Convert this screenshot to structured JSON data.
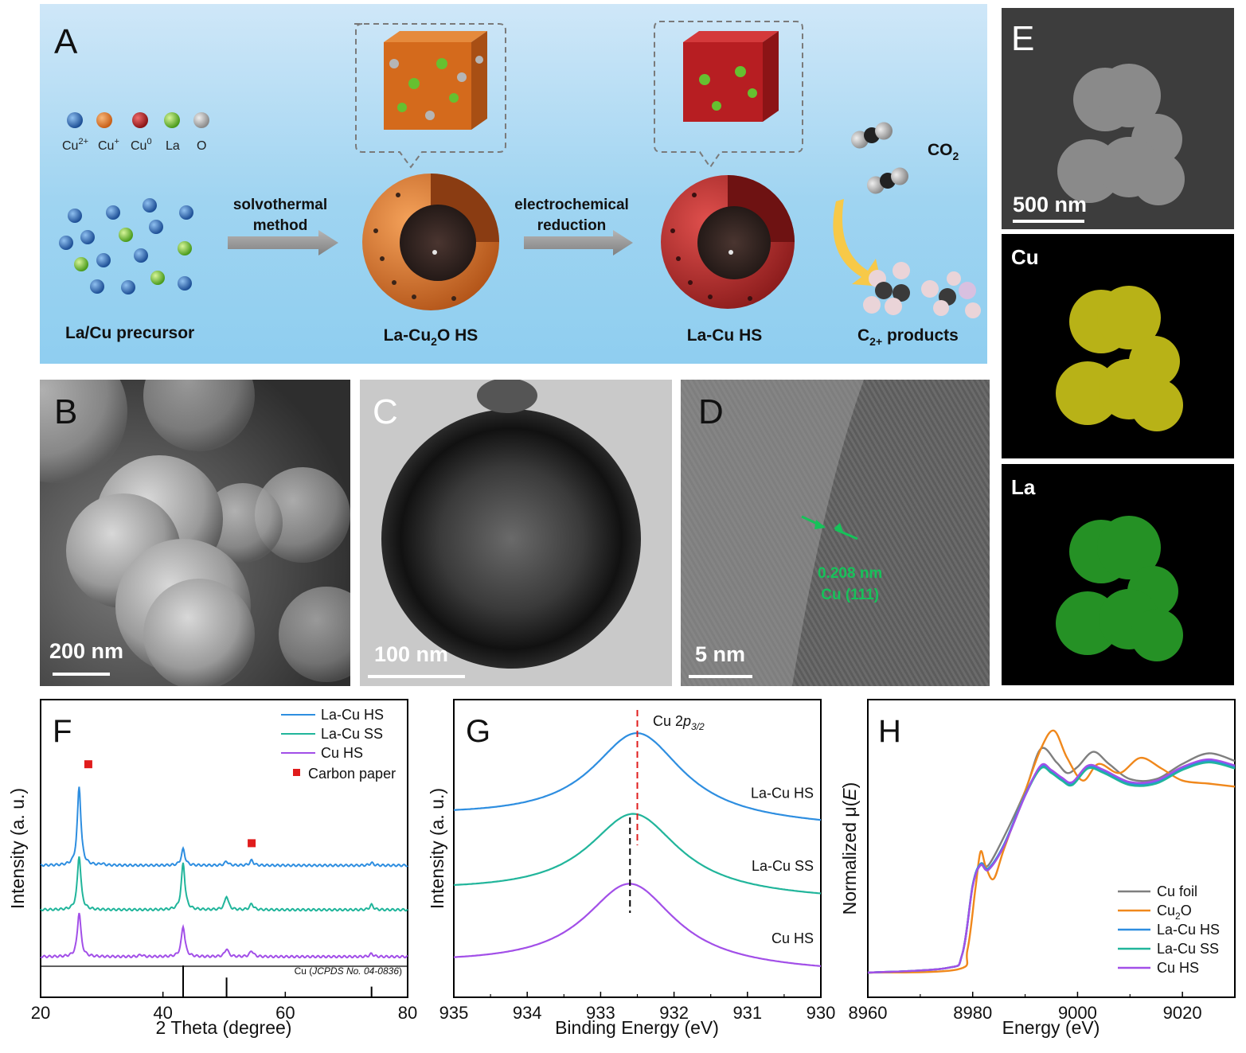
{
  "schematic": {
    "label": "A",
    "legend": [
      {
        "ion": "Cu",
        "charge": "2+",
        "color": "#2f6fb8"
      },
      {
        "ion": "Cu",
        "charge": "+",
        "color": "#e07a2a"
      },
      {
        "ion": "Cu",
        "charge": "0",
        "color": "#b8262a"
      },
      {
        "ion": "La",
        "charge": "",
        "color": "#6cc230"
      },
      {
        "ion": "O",
        "charge": "",
        "color": "#a8a8a8"
      }
    ],
    "arrow1_line1": "solvothermal",
    "arrow1_line2": "method",
    "arrow2_line1": "electrochemical",
    "arrow2_line2": "reduction",
    "precursor_label": "La/Cu precursor",
    "cu2o_label_a": "La-Cu",
    "cu2o_label_sub": "2",
    "cu2o_label_b": "O HS",
    "cuhs_label": "La-Cu HS",
    "co2_label": "CO",
    "co2_sub": "2",
    "products_label_a": "C",
    "products_label_sub": "2+",
    "products_label_b": " products"
  },
  "micrographs": {
    "B": {
      "label": "B",
      "scalebar": "200 nm"
    },
    "C": {
      "label": "C",
      "scalebar": "100 nm"
    },
    "D": {
      "label": "D",
      "scalebar": "5 nm",
      "fringe_spacing": "0.208 nm",
      "fringe_plane": "Cu (111)"
    },
    "E": {
      "label": "E",
      "scalebar": "500 nm"
    },
    "map_cu": {
      "label": "Cu",
      "color": "#d9d21c"
    },
    "map_la": {
      "label": "La",
      "color": "#2fb62f"
    }
  },
  "chart_data": [
    {
      "panel": "F",
      "type": "line",
      "xlabel": "2 Theta (degree)",
      "ylabel": "Intensity (a. u.)",
      "xlim": [
        20,
        80
      ],
      "xticks": [
        20,
        40,
        60,
        80
      ],
      "series": [
        {
          "name": "La-Cu HS",
          "color": "#2e8ee0",
          "offset": 1.85,
          "peaks": [
            [
              26.3,
              1.6
            ],
            [
              30.0,
              0.03
            ],
            [
              43.3,
              0.33
            ],
            [
              50.4,
              0.08
            ],
            [
              54.5,
              0.1
            ],
            [
              74.1,
              0.05
            ]
          ]
        },
        {
          "name": "La-Cu SS",
          "color": "#21b59b",
          "offset": 0.95,
          "peaks": [
            [
              26.3,
              1.1
            ],
            [
              43.3,
              0.95
            ],
            [
              50.4,
              0.28
            ],
            [
              54.5,
              0.12
            ],
            [
              74.1,
              0.1
            ]
          ]
        },
        {
          "name": "Cu HS",
          "color": "#a24fe8",
          "offset": 0.0,
          "peaks": [
            [
              26.3,
              0.9
            ],
            [
              36.4,
              0.04
            ],
            [
              43.3,
              0.62
            ],
            [
              50.4,
              0.16
            ],
            [
              54.5,
              0.12
            ],
            [
              74.1,
              0.06
            ]
          ]
        }
      ],
      "markers": {
        "name": "Carbon paper",
        "color": "#e01c1c",
        "positions": [
          [
            27.8,
            3.9
          ],
          [
            54.5,
            2.3
          ]
        ]
      },
      "reference": {
        "label": "Cu (",
        "label_italic": "JCPDS No. 04-0836",
        "label_end": ")",
        "lines": [
          [
            43.3,
            1.0
          ],
          [
            50.4,
            0.6
          ],
          [
            74.1,
            0.3
          ]
        ]
      },
      "legend": "top-right"
    },
    {
      "panel": "G",
      "type": "line",
      "xlabel": "Binding Energy (eV)",
      "ylabel": "Intensity (a. u.)",
      "xlim": [
        935,
        930
      ],
      "xticks": [
        935,
        934,
        933,
        932,
        931,
        930
      ],
      "annotation": {
        "text_a": "Cu 2",
        "text_italic": "p",
        "text_sub": "3/2"
      },
      "series": [
        {
          "name": "La-Cu HS",
          "color": "#2e8ee0",
          "center": 932.5,
          "amp": 1.0,
          "base": 2.2,
          "slope": 0.15
        },
        {
          "name": "La-Cu SS",
          "color": "#21b59b",
          "center": 932.55,
          "amp": 0.92,
          "base": 1.1,
          "slope": 0.12
        },
        {
          "name": "Cu HS",
          "color": "#a24fe8",
          "center": 932.6,
          "amp": 0.95,
          "base": 0.0,
          "slope": 0.12
        }
      ],
      "guides": [
        {
          "x": 932.5,
          "color": "#e01c1c"
        },
        {
          "x": 932.6,
          "color": "#000000"
        }
      ]
    },
    {
      "panel": "H",
      "type": "line",
      "xlabel": "Energy (eV)",
      "ylabel_a": "Normalized μ(",
      "ylabel_italic": "E",
      "ylabel_b": ")",
      "xlim": [
        8960,
        9030
      ],
      "xticks": [
        8960,
        8980,
        9000,
        9020
      ],
      "series": [
        {
          "name": "Cu foil",
          "color": "#7f7f7f",
          "points": [
            [
              8960,
              0
            ],
            [
              8975,
              0.03
            ],
            [
              8978,
              0.12
            ],
            [
              8980,
              0.58
            ],
            [
              8981.5,
              0.72
            ],
            [
              8983,
              0.71
            ],
            [
              8986,
              0.9
            ],
            [
              8990,
              1.2
            ],
            [
              8993,
              1.48
            ],
            [
              8996,
              1.39
            ],
            [
              8998,
              1.32
            ],
            [
              9000,
              1.36
            ],
            [
              9003,
              1.46
            ],
            [
              9006,
              1.38
            ],
            [
              9010,
              1.28
            ],
            [
              9015,
              1.28
            ],
            [
              9020,
              1.38
            ],
            [
              9025,
              1.45
            ],
            [
              9030,
              1.4
            ]
          ]
        },
        {
          "name": "Cu",
          "sub": "2",
          "tail": "O",
          "color": "#f0881c",
          "points": [
            [
              8960,
              0
            ],
            [
              8977,
              0.02
            ],
            [
              8979,
              0.15
            ],
            [
              8980.5,
              0.55
            ],
            [
              8981.5,
              0.8
            ],
            [
              8982.5,
              0.7
            ],
            [
              8984,
              0.62
            ],
            [
              8986,
              0.82
            ],
            [
              8990,
              1.2
            ],
            [
              8993,
              1.48
            ],
            [
              8995.5,
              1.6
            ],
            [
              8998,
              1.42
            ],
            [
              9001,
              1.27
            ],
            [
              9004,
              1.38
            ],
            [
              9008,
              1.32
            ],
            [
              9012,
              1.42
            ],
            [
              9016,
              1.35
            ],
            [
              9020,
              1.27
            ],
            [
              9025,
              1.25
            ],
            [
              9030,
              1.23
            ]
          ]
        },
        {
          "name": "La-Cu HS",
          "color": "#2e8ee0",
          "points": [
            [
              8960,
              0
            ],
            [
              8975,
              0.03
            ],
            [
              8978,
              0.12
            ],
            [
              8980,
              0.58
            ],
            [
              8981.5,
              0.72
            ],
            [
              8983,
              0.69
            ],
            [
              8986,
              0.85
            ],
            [
              8990,
              1.18
            ],
            [
              8993,
              1.36
            ],
            [
              8995,
              1.33
            ],
            [
              8997,
              1.28
            ],
            [
              8999,
              1.25
            ],
            [
              9002,
              1.36
            ],
            [
              9005,
              1.33
            ],
            [
              9010,
              1.25
            ],
            [
              9015,
              1.26
            ],
            [
              9020,
              1.35
            ],
            [
              9025,
              1.4
            ],
            [
              9030,
              1.36
            ]
          ]
        },
        {
          "name": "La-Cu SS",
          "color": "#21b59b",
          "points": [
            [
              8960,
              0
            ],
            [
              8975,
              0.03
            ],
            [
              8978,
              0.12
            ],
            [
              8980,
              0.57
            ],
            [
              8981.5,
              0.71
            ],
            [
              8983,
              0.68
            ],
            [
              8986,
              0.84
            ],
            [
              8990,
              1.17
            ],
            [
              8993,
              1.35
            ],
            [
              8995,
              1.32
            ],
            [
              8997,
              1.27
            ],
            [
              8999,
              1.24
            ],
            [
              9002,
              1.35
            ],
            [
              9005,
              1.32
            ],
            [
              9010,
              1.24
            ],
            [
              9015,
              1.25
            ],
            [
              9020,
              1.34
            ],
            [
              9025,
              1.39
            ],
            [
              9030,
              1.35
            ]
          ]
        },
        {
          "name": "Cu HS",
          "color": "#a24fe8",
          "points": [
            [
              8960,
              0
            ],
            [
              8975,
              0.03
            ],
            [
              8978,
              0.12
            ],
            [
              8980,
              0.57
            ],
            [
              8981.5,
              0.71
            ],
            [
              8983,
              0.68
            ],
            [
              8986,
              0.84
            ],
            [
              8990,
              1.17
            ],
            [
              8993,
              1.37
            ],
            [
              8995,
              1.34
            ],
            [
              8997,
              1.29
            ],
            [
              8999,
              1.26
            ],
            [
              9002,
              1.37
            ],
            [
              9005,
              1.34
            ],
            [
              9010,
              1.26
            ],
            [
              9015,
              1.27
            ],
            [
              9020,
              1.36
            ],
            [
              9025,
              1.41
            ],
            [
              9030,
              1.37
            ]
          ]
        }
      ],
      "legend": "bottom-right"
    }
  ]
}
